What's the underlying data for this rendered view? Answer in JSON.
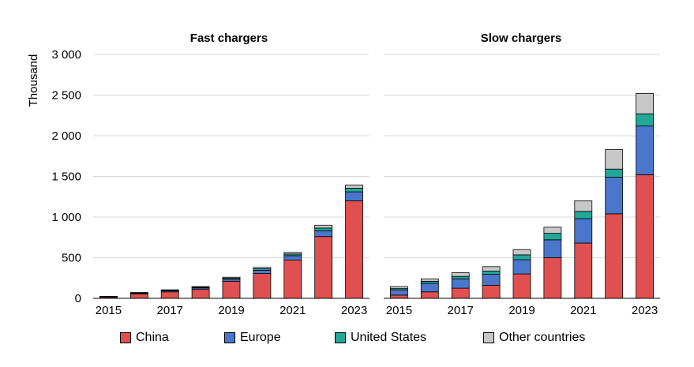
{
  "chart_data": {
    "type": "bar",
    "stacked": true,
    "ylabel": "Thousand",
    "ylim": [
      0,
      3000
    ],
    "yticks": [
      0,
      500,
      1000,
      1500,
      2000,
      2500,
      3000
    ],
    "ytick_labels": [
      "0",
      "500",
      "1 000",
      "1 500",
      "2 000",
      "2 500",
      "3 000"
    ],
    "grid": true,
    "legend_position": "bottom",
    "categories": [
      "2015",
      "2016",
      "2017",
      "2018",
      "2019",
      "2020",
      "2021",
      "2022",
      "2023"
    ],
    "xtick_labels": [
      "2015",
      "",
      "2017",
      "",
      "2019",
      "",
      "2021",
      "",
      "2023"
    ],
    "series_names": [
      "China",
      "Europe",
      "United States",
      "Other countries"
    ],
    "colors": {
      "China": "#e05050",
      "Europe": "#4a76cc",
      "United States": "#22a898",
      "Other countries": "#c8c8c8"
    },
    "panels": [
      {
        "title": "Fast  chargers",
        "series": [
          {
            "name": "China",
            "values": [
              15,
              55,
              80,
              110,
              210,
              305,
              470,
              760,
              1200
            ]
          },
          {
            "name": "Europe",
            "values": [
              5,
              8,
              12,
              18,
              25,
              40,
              55,
              70,
              110
            ]
          },
          {
            "name": "United States",
            "values": [
              2,
              4,
              6,
              8,
              12,
              18,
              20,
              35,
              45
            ]
          },
          {
            "name": "Other countries",
            "values": [
              3,
              5,
              7,
              9,
              13,
              17,
              20,
              35,
              40
            ]
          }
        ]
      },
      {
        "title": "Slow chargers",
        "series": [
          {
            "name": "China",
            "values": [
              40,
              80,
              125,
              160,
              300,
              500,
              680,
              1040,
              1520
            ]
          },
          {
            "name": "Europe",
            "values": [
              65,
              105,
              115,
              135,
              175,
              220,
              300,
              450,
              600
            ]
          },
          {
            "name": "United States",
            "values": [
              15,
              25,
              30,
              40,
              60,
              80,
              90,
              100,
              150
            ]
          },
          {
            "name": "Other countries",
            "values": [
              25,
              30,
              45,
              55,
              65,
              75,
              130,
              240,
              250
            ]
          }
        ]
      }
    ]
  }
}
